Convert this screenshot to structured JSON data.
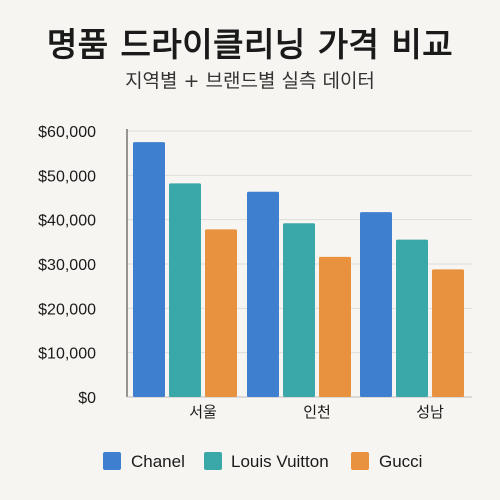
{
  "title": "명품 드라이클리닝 가격 비교",
  "subtitle": "지역별 + 브랜드별 실측 데이터",
  "chart_data": {
    "type": "bar",
    "categories": [
      "서울",
      "인천",
      "성남"
    ],
    "series": [
      {
        "name": "Chanel",
        "color": "#3f7fcf",
        "values": [
          57500,
          46300,
          41700
        ]
      },
      {
        "name": "Louis Vuitton",
        "color": "#3aa8a8",
        "values": [
          48200,
          39200,
          35500
        ]
      },
      {
        "name": "Gucci",
        "color": "#e8913f",
        "values": [
          37800,
          31600,
          28800
        ]
      }
    ],
    "ylim": [
      0,
      60000
    ],
    "yticks": [
      0,
      10000,
      20000,
      30000,
      40000,
      50000,
      60000
    ],
    "ytick_labels": [
      "$0",
      "$10,000",
      "$20,000",
      "$30,000",
      "$40,000",
      "$50,000",
      "$60,000"
    ],
    "grid": true,
    "legend_position": "bottom"
  }
}
